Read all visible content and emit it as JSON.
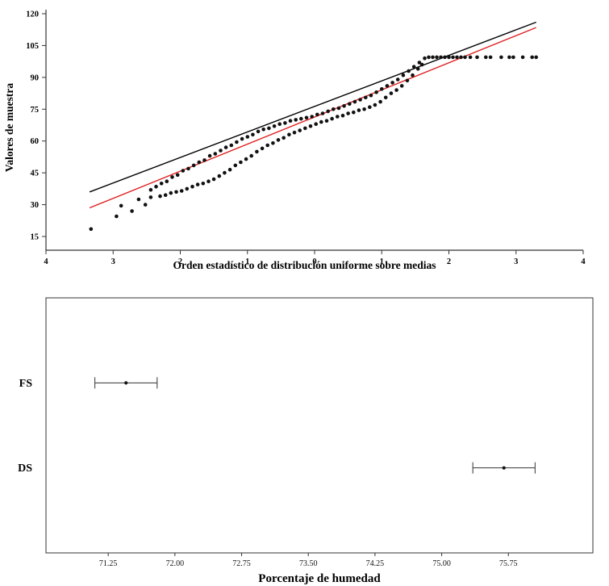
{
  "colors": {
    "points": "#111111",
    "black_line": "#000000",
    "red_line": "#e02020",
    "axis": "#333333",
    "text": "#000000"
  },
  "chart_data": [
    {
      "id": "qq_plot",
      "type": "scatter",
      "title": "",
      "xlabel": "Orden estadístico de distribución uniforme sobre medias",
      "ylabel": "Valores de muestra",
      "xlim": [
        -4,
        4
      ],
      "ylim": [
        15,
        120
      ],
      "grid": false,
      "legend": "none",
      "xticks": {
        "values": [
          -4,
          -3,
          -2,
          -1,
          0,
          1,
          2,
          3,
          4
        ],
        "labels": [
          "4",
          "3",
          "2",
          "1",
          "0",
          "1",
          "2",
          "3",
          "4"
        ]
      },
      "yticks": {
        "values": [
          15,
          30,
          45,
          60,
          75,
          90,
          105,
          120
        ],
        "labels": [
          "15",
          "30",
          "45",
          "60",
          "75",
          "90",
          "105",
          "120"
        ]
      },
      "lines": [
        {
          "name": "linea-referencia-negra",
          "color": "#000000",
          "from": [
            -3.35,
            36
          ],
          "to": [
            3.3,
            116
          ]
        },
        {
          "name": "linea-referencia-roja",
          "color": "#e02020",
          "from": [
            -3.35,
            28.5
          ],
          "to": [
            3.3,
            113.5
          ]
        }
      ],
      "series": [
        {
          "name": "serie-superior",
          "marker": "circle",
          "points": [
            [
              -2.44,
              37
            ],
            [
              -2.36,
              38.5
            ],
            [
              -2.28,
              40
            ],
            [
              -2.2,
              41
            ],
            [
              -2.12,
              43
            ],
            [
              -2.04,
              44
            ],
            [
              -1.96,
              46
            ],
            [
              -1.88,
              47
            ],
            [
              -1.8,
              48.5
            ],
            [
              -1.72,
              50
            ],
            [
              -1.64,
              51
            ],
            [
              -1.56,
              53
            ],
            [
              -1.48,
              54
            ],
            [
              -1.4,
              55.5
            ],
            [
              -1.32,
              57
            ],
            [
              -1.24,
              58
            ],
            [
              -1.16,
              59.5
            ],
            [
              -1.08,
              61
            ],
            [
              -1.0,
              62
            ],
            [
              -0.92,
              63
            ],
            [
              -0.84,
              64.5
            ],
            [
              -0.76,
              65.5
            ],
            [
              -0.68,
              66
            ],
            [
              -0.6,
              67
            ],
            [
              -0.52,
              68
            ],
            [
              -0.44,
              68.5
            ],
            [
              -0.36,
              69.5
            ],
            [
              -0.28,
              70
            ],
            [
              -0.2,
              70.5
            ],
            [
              -0.12,
              71
            ],
            [
              -0.04,
              71.5
            ],
            [
              0.04,
              72.5
            ],
            [
              0.12,
              73
            ],
            [
              0.2,
              74
            ],
            [
              0.28,
              75
            ],
            [
              0.36,
              75.5
            ],
            [
              0.44,
              76.5
            ],
            [
              0.52,
              77.5
            ],
            [
              0.6,
              78.5
            ],
            [
              0.68,
              79.5
            ],
            [
              0.76,
              80.5
            ],
            [
              0.84,
              81.5
            ],
            [
              0.92,
              83
            ],
            [
              1.0,
              84.5
            ],
            [
              1.08,
              86
            ],
            [
              1.16,
              87.5
            ],
            [
              1.24,
              89
            ],
            [
              1.32,
              91
            ],
            [
              1.4,
              93
            ],
            [
              1.48,
              95
            ],
            [
              1.56,
              97
            ],
            [
              1.64,
              99
            ],
            [
              1.7,
              99.5
            ],
            [
              1.76,
              99.5
            ],
            [
              1.82,
              99.5
            ],
            [
              1.88,
              99.5
            ],
            [
              1.94,
              99.5
            ],
            [
              2.0,
              99.5
            ],
            [
              2.06,
              99.5
            ],
            [
              2.12,
              99.5
            ],
            [
              2.18,
              99.5
            ],
            [
              2.24,
              99.5
            ],
            [
              2.32,
              99.5
            ],
            [
              2.42,
              99.5
            ],
            [
              2.55,
              99.5
            ],
            [
              2.62,
              99.5
            ],
            [
              2.78,
              99.5
            ],
            [
              2.9,
              99.5
            ],
            [
              2.96,
              99.5
            ],
            [
              3.1,
              99.5
            ],
            [
              3.24,
              99.5
            ],
            [
              3.3,
              99.5
            ]
          ]
        },
        {
          "name": "serie-inferior",
          "marker": "circle",
          "points": [
            [
              -3.33,
              18.5
            ],
            [
              -2.95,
              24.5
            ],
            [
              -2.88,
              29.5
            ],
            [
              -2.72,
              27
            ],
            [
              -2.62,
              32.5
            ],
            [
              -2.52,
              30
            ],
            [
              -2.44,
              33.5
            ],
            [
              -2.3,
              34
            ],
            [
              -2.22,
              34.5
            ],
            [
              -2.14,
              35.5
            ],
            [
              -2.06,
              36
            ],
            [
              -1.98,
              36.5
            ],
            [
              -1.9,
              37.5
            ],
            [
              -1.82,
              38.5
            ],
            [
              -1.74,
              39.5
            ],
            [
              -1.66,
              40
            ],
            [
              -1.58,
              41
            ],
            [
              -1.5,
              42
            ],
            [
              -1.42,
              43.5
            ],
            [
              -1.34,
              45
            ],
            [
              -1.26,
              46.5
            ],
            [
              -1.18,
              48.5
            ],
            [
              -1.1,
              50
            ],
            [
              -1.02,
              51.5
            ],
            [
              -0.94,
              53
            ],
            [
              -0.86,
              55
            ],
            [
              -0.78,
              56.5
            ],
            [
              -0.7,
              58
            ],
            [
              -0.62,
              59
            ],
            [
              -0.54,
              60.5
            ],
            [
              -0.46,
              61.5
            ],
            [
              -0.38,
              63
            ],
            [
              -0.3,
              64
            ],
            [
              -0.22,
              65
            ],
            [
              -0.14,
              66
            ],
            [
              -0.06,
              67
            ],
            [
              0.02,
              68
            ],
            [
              0.1,
              69
            ],
            [
              0.18,
              69.5
            ],
            [
              0.26,
              70.5
            ],
            [
              0.34,
              71.5
            ],
            [
              0.42,
              72
            ],
            [
              0.5,
              73
            ],
            [
              0.58,
              73.5
            ],
            [
              0.66,
              74.5
            ],
            [
              0.74,
              75
            ],
            [
              0.82,
              76
            ],
            [
              0.9,
              77
            ],
            [
              0.98,
              78.5
            ],
            [
              1.06,
              80.5
            ],
            [
              1.14,
              82.5
            ],
            [
              1.22,
              84
            ],
            [
              1.3,
              86
            ],
            [
              1.38,
              88.5
            ],
            [
              1.46,
              91
            ],
            [
              1.54,
              94
            ],
            [
              1.6,
              96
            ]
          ]
        }
      ]
    },
    {
      "id": "interval_plot",
      "type": "interval",
      "xlabel": "Porcentaje de humedad",
      "xlim": [
        70.55,
        76.7
      ],
      "grid": false,
      "categories": [
        "FS",
        "DS"
      ],
      "items": [
        {
          "label": "FS",
          "center": 71.45,
          "low": 71.1,
          "high": 71.8
        },
        {
          "label": "DS",
          "center": 75.7,
          "low": 75.35,
          "high": 76.05
        }
      ],
      "xticks": {
        "values": [
          71.25,
          72.0,
          72.75,
          73.5,
          74.25,
          75.0,
          75.75
        ],
        "labels": [
          "71.25",
          "72.00",
          "72.75",
          "73.50",
          "74.25",
          "75.00",
          "75.75"
        ]
      }
    }
  ]
}
